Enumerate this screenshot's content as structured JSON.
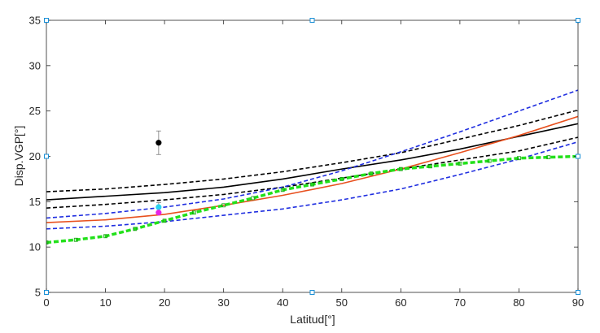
{
  "chart_data": {
    "type": "line",
    "xlabel": "Latitud[°]",
    "ylabel": "Disp.VGP[°]",
    "xlim": [
      0,
      90
    ],
    "ylim": [
      5,
      35
    ],
    "xticks": [
      0,
      10,
      20,
      30,
      40,
      50,
      60,
      70,
      80,
      90
    ],
    "yticks": [
      5,
      10,
      15,
      20,
      25,
      30,
      35
    ],
    "grid": false,
    "box": true,
    "series": [
      {
        "style": "solid",
        "color": "#000000",
        "x": [
          0,
          10,
          20,
          30,
          40,
          50,
          60,
          70,
          80,
          90
        ],
        "y": [
          15.2,
          15.6,
          16.0,
          16.6,
          17.5,
          18.6,
          19.6,
          20.8,
          22.2,
          23.6
        ]
      },
      {
        "style": "dashed",
        "color": "#000000",
        "x": [
          0,
          10,
          20,
          30,
          40,
          50,
          60,
          70,
          80,
          90
        ],
        "y": [
          16.1,
          16.4,
          16.9,
          17.5,
          18.3,
          19.3,
          20.4,
          21.9,
          23.4,
          25.1
        ]
      },
      {
        "style": "dashed",
        "color": "#000000",
        "x": [
          0,
          10,
          20,
          30,
          40,
          50,
          60,
          70,
          80,
          90
        ],
        "y": [
          14.3,
          14.7,
          15.2,
          15.8,
          16.6,
          17.6,
          18.6,
          19.6,
          20.6,
          22.1
        ]
      },
      {
        "style": "solid",
        "color": "#e8501e",
        "x": [
          0,
          10,
          20,
          30,
          40,
          50,
          60,
          70,
          80,
          90
        ],
        "y": [
          12.7,
          13.0,
          13.6,
          14.6,
          15.7,
          17.0,
          18.6,
          20.4,
          22.3,
          24.4
        ]
      },
      {
        "style": "dashed",
        "color": "#1f2ee0",
        "x": [
          0,
          10,
          20,
          30,
          40,
          50,
          60,
          70,
          80,
          90
        ],
        "y": [
          13.2,
          13.7,
          14.4,
          15.3,
          16.6,
          18.4,
          20.5,
          22.7,
          25.0,
          27.3
        ]
      },
      {
        "style": "dashed",
        "color": "#1f2ee0",
        "x": [
          0,
          10,
          20,
          30,
          40,
          50,
          60,
          70,
          80,
          90
        ],
        "y": [
          12.0,
          12.3,
          12.8,
          13.5,
          14.2,
          15.2,
          16.4,
          18.0,
          19.7,
          21.6
        ]
      },
      {
        "style": "dashed",
        "color": "#22e01a",
        "width": 3.5,
        "markers": "square",
        "x": [
          0,
          5,
          10,
          15,
          20,
          25,
          30,
          35,
          40,
          45,
          50,
          55,
          60,
          65,
          70,
          75,
          80,
          85,
          90
        ],
        "y": [
          10.5,
          10.8,
          11.2,
          12.0,
          12.9,
          13.8,
          14.6,
          15.4,
          16.3,
          16.9,
          17.5,
          18.1,
          18.6,
          18.9,
          19.2,
          19.5,
          19.8,
          19.9,
          20.0
        ]
      }
    ],
    "points": [
      {
        "x": 19,
        "y": 21.5,
        "color": "#000000",
        "error": 1.3
      },
      {
        "x": 19,
        "y": 14.4,
        "color": "#2ad4f0",
        "error": 0.5
      },
      {
        "x": 19,
        "y": 13.8,
        "color": "#e624e6",
        "error": 0
      }
    ]
  }
}
